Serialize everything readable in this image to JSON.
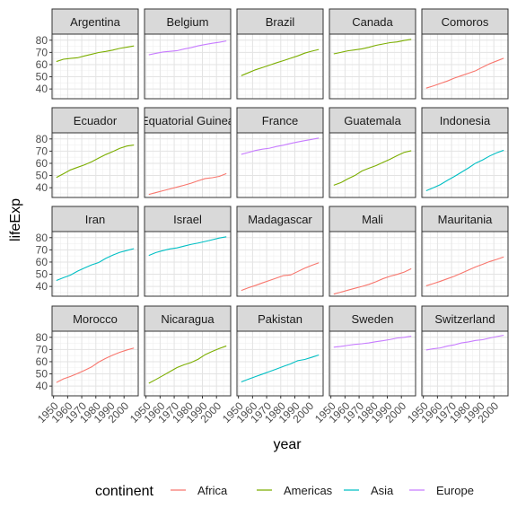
{
  "chart_data": {
    "type": "line",
    "facet": "country",
    "xlabel": "year",
    "ylabel": "lifeExp",
    "xlim": [
      1952,
      2007
    ],
    "ylim": [
      32,
      85
    ],
    "x_ticks": [
      1950,
      1960,
      1970,
      1980,
      1990,
      2000
    ],
    "x_tick_labels": [
      "1950",
      "1960",
      "1970",
      "1980",
      "1990",
      "2000"
    ],
    "y_ticks": [
      40,
      50,
      60,
      70,
      80
    ],
    "y_tick_labels": [
      "40",
      "50",
      "60",
      "70",
      "80"
    ],
    "grid": true,
    "legend": {
      "title": "continent",
      "position": "bottom",
      "entries": [
        {
          "label": "Africa",
          "color": "#F8766D"
        },
        {
          "label": "Americas",
          "color": "#7CAE00"
        },
        {
          "label": "Asia",
          "color": "#00BFC4"
        },
        {
          "label": "Europe",
          "color": "#C77CFF"
        }
      ]
    },
    "x": [
      1952,
      1957,
      1962,
      1967,
      1972,
      1977,
      1982,
      1987,
      1992,
      1997,
      2002,
      2007
    ],
    "series": [
      {
        "name": "Argentina",
        "continent": "Americas",
        "values": [
          62.5,
          64.4,
          65.1,
          65.6,
          67.1,
          68.5,
          69.9,
          70.8,
          71.9,
          73.3,
          74.3,
          75.3
        ]
      },
      {
        "name": "Belgium",
        "continent": "Europe",
        "values": [
          68.0,
          69.2,
          70.3,
          70.9,
          71.4,
          72.8,
          73.9,
          75.4,
          76.5,
          77.5,
          78.3,
          79.4
        ]
      },
      {
        "name": "Brazil",
        "continent": "Americas",
        "values": [
          50.9,
          53.3,
          55.7,
          57.6,
          59.5,
          61.5,
          63.3,
          65.2,
          67.1,
          69.4,
          71.0,
          72.4
        ]
      },
      {
        "name": "Canada",
        "continent": "Americas",
        "values": [
          68.8,
          70.0,
          71.3,
          72.1,
          72.9,
          74.2,
          75.8,
          76.9,
          78.0,
          78.6,
          79.8,
          80.7
        ]
      },
      {
        "name": "Comoros",
        "continent": "Africa",
        "values": [
          40.7,
          42.5,
          44.5,
          46.5,
          48.9,
          50.9,
          52.9,
          54.9,
          57.9,
          60.7,
          62.97,
          65.2
        ]
      },
      {
        "name": "Ecuador",
        "continent": "Americas",
        "values": [
          48.4,
          51.4,
          54.6,
          56.7,
          58.8,
          61.3,
          64.3,
          67.2,
          69.6,
          72.3,
          74.2,
          74.99
        ]
      },
      {
        "name": "Equatorial Guinea",
        "continent": "Africa",
        "values": [
          34.5,
          35.98,
          37.5,
          38.99,
          40.5,
          42.02,
          43.7,
          45.7,
          47.5,
          48.2,
          49.3,
          51.6
        ]
      },
      {
        "name": "France",
        "continent": "Europe",
        "values": [
          67.4,
          68.9,
          70.5,
          71.6,
          72.4,
          73.8,
          74.9,
          76.3,
          77.5,
          78.6,
          79.6,
          80.7
        ]
      },
      {
        "name": "Guatemala",
        "continent": "Americas",
        "values": [
          42.0,
          44.1,
          47.3,
          50.0,
          53.7,
          56.0,
          58.1,
          60.8,
          63.4,
          66.3,
          68.98,
          70.3
        ]
      },
      {
        "name": "Indonesia",
        "continent": "Asia",
        "values": [
          37.5,
          39.9,
          42.5,
          46.0,
          49.2,
          52.7,
          56.2,
          60.1,
          62.7,
          66.0,
          68.6,
          70.7
        ]
      },
      {
        "name": "Iran",
        "continent": "Asia",
        "values": [
          44.9,
          47.2,
          49.3,
          52.5,
          55.2,
          57.7,
          59.6,
          63.0,
          65.7,
          68.0,
          69.5,
          71.0
        ]
      },
      {
        "name": "Israel",
        "continent": "Asia",
        "values": [
          65.4,
          67.8,
          69.4,
          70.8,
          71.6,
          73.1,
          74.5,
          75.6,
          76.9,
          78.3,
          79.7,
          80.7
        ]
      },
      {
        "name": "Madagascar",
        "continent": "Africa",
        "values": [
          36.7,
          38.9,
          40.8,
          42.9,
          44.9,
          46.9,
          48.9,
          49.4,
          52.2,
          54.98,
          57.3,
          59.4
        ]
      },
      {
        "name": "Mali",
        "continent": "Africa",
        "values": [
          33.7,
          35.3,
          36.9,
          38.5,
          40.0,
          41.7,
          43.9,
          46.4,
          48.4,
          49.9,
          51.8,
          54.5
        ]
      },
      {
        "name": "Mauritania",
        "continent": "Africa",
        "values": [
          40.5,
          42.3,
          44.2,
          46.3,
          48.4,
          50.9,
          53.4,
          56.0,
          58.1,
          60.4,
          62.2,
          64.2
        ]
      },
      {
        "name": "Morocco",
        "continent": "Africa",
        "values": [
          42.9,
          45.9,
          47.9,
          50.3,
          52.9,
          55.7,
          59.7,
          62.7,
          65.4,
          67.7,
          69.6,
          71.2
        ]
      },
      {
        "name": "Nicaragua",
        "continent": "Americas",
        "values": [
          42.3,
          45.4,
          48.6,
          51.9,
          55.2,
          57.5,
          59.3,
          62.0,
          65.8,
          68.4,
          70.8,
          72.9
        ]
      },
      {
        "name": "Pakistan",
        "continent": "Asia",
        "values": [
          43.4,
          45.6,
          47.7,
          49.8,
          51.9,
          54.0,
          56.2,
          58.2,
          60.8,
          61.8,
          63.6,
          65.5
        ]
      },
      {
        "name": "Sweden",
        "continent": "Europe",
        "values": [
          71.9,
          72.5,
          73.4,
          74.2,
          74.7,
          75.4,
          76.4,
          77.2,
          78.2,
          79.4,
          80.0,
          80.9
        ]
      },
      {
        "name": "Switzerland",
        "continent": "Europe",
        "values": [
          69.6,
          70.6,
          71.3,
          72.8,
          73.8,
          75.4,
          76.2,
          77.4,
          78.0,
          79.4,
          80.6,
          81.7
        ]
      }
    ]
  }
}
